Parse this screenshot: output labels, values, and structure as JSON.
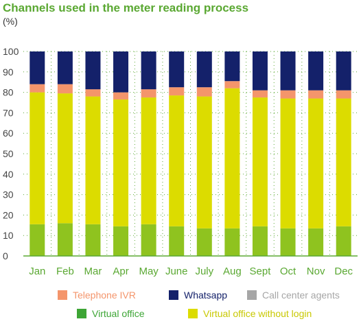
{
  "chart_data": {
    "type": "bar",
    "stacked": true,
    "title": "Channels used in the meter reading process",
    "subtitle": "(%)",
    "categories": [
      "Jan",
      "Feb",
      "Mar",
      "Apr",
      "May",
      "June",
      "July",
      "Aug",
      "Sept",
      "Oct",
      "Nov",
      "Dec"
    ],
    "ylim": [
      0,
      100
    ],
    "yticks": [
      0,
      10,
      20,
      30,
      40,
      50,
      60,
      70,
      80,
      90,
      100
    ],
    "grid": "horizontal dotted",
    "legend_position": "bottom",
    "series": [
      {
        "name": "Virtual office",
        "color": "#8fc31f",
        "values": [
          15.5,
          16,
          15.5,
          14.5,
          15.5,
          14.5,
          13.5,
          13.5,
          14.5,
          13.5,
          13.5,
          14.5
        ]
      },
      {
        "name": "Virtual office without login",
        "color": "#dcdc00",
        "values": [
          64.5,
          63.5,
          62.5,
          62,
          62,
          64,
          64.5,
          68.5,
          63,
          63.5,
          63.5,
          62.5
        ]
      },
      {
        "name": "Call center agents",
        "color": "#a6a6a6",
        "values": [
          0,
          0,
          0,
          0,
          0,
          0,
          0,
          0,
          0,
          0,
          0,
          0
        ]
      },
      {
        "name": "Telephone IVR",
        "color": "#f4956b",
        "values": [
          4,
          4.5,
          3.5,
          3.5,
          4,
          4,
          4.5,
          3.5,
          3.5,
          4,
          4,
          4
        ]
      },
      {
        "name": "Whatsapp",
        "color": "#14216a",
        "values": [
          16,
          16,
          18.5,
          20,
          18.5,
          17.5,
          17.5,
          14.5,
          19,
          19,
          19,
          19
        ]
      }
    ]
  },
  "legend": {
    "row1": [
      {
        "name": "Telephone IVR",
        "color": "#f4956b",
        "label_color": "#f4956b"
      },
      {
        "name": "Whatsapp",
        "color": "#14216a",
        "label_color": "#14216a"
      },
      {
        "name": "Call center agents",
        "color": "#a6a6a6",
        "label_color": "#a6a6a6"
      }
    ],
    "row2": [
      {
        "name": "Virtual office",
        "color": "#3da535",
        "label_color": "#3da535"
      },
      {
        "name": "Virtual office without login",
        "color": "#dcdc00",
        "label_color": "#c8c800"
      }
    ]
  }
}
